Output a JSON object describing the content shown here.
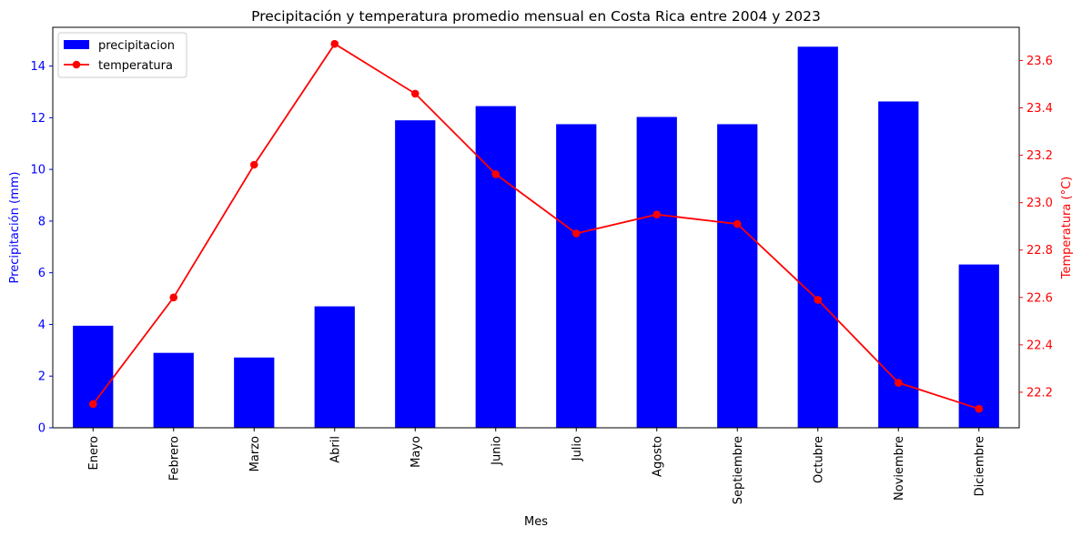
{
  "chart_data": {
    "type": "bar+line",
    "title": "Precipitación y temperatura promedio mensual en Costa Rica entre 2004 y 2023",
    "xlabel": "Mes",
    "categories": [
      "Enero",
      "Febrero",
      "Marzo",
      "Abril",
      "Mayo",
      "Junio",
      "Julio",
      "Agosto",
      "Septiembre",
      "Octubre",
      "Noviembre",
      "Diciembre"
    ],
    "series": [
      {
        "name": "precipitacion",
        "type": "bar",
        "axis": "left",
        "color": "#0000ff",
        "values": [
          3.95,
          2.9,
          2.72,
          4.7,
          11.9,
          12.45,
          11.75,
          12.03,
          11.75,
          14.75,
          12.63,
          6.32
        ]
      },
      {
        "name": "temperatura",
        "type": "line",
        "marker": "circle",
        "axis": "right",
        "color": "#ff0000",
        "values": [
          22.15,
          22.6,
          23.16,
          23.67,
          23.46,
          23.12,
          22.87,
          22.95,
          22.91,
          22.59,
          22.24,
          22.13
        ]
      }
    ],
    "y_left": {
      "label": "Precipitación (mm)",
      "color": "#0000ff",
      "lim": [
        0,
        15.5
      ],
      "ticks": [
        0,
        2,
        4,
        6,
        8,
        10,
        12,
        14
      ]
    },
    "y_right": {
      "label": "Temperatura (°C)",
      "color": "#ff0000",
      "lim": [
        22.05,
        23.74
      ],
      "ticks": [
        22.2,
        22.4,
        22.6,
        22.8,
        23.0,
        23.2,
        23.4,
        23.6
      ]
    },
    "legend": {
      "placement": "top-left",
      "entries": [
        "precipitacion",
        "temperatura"
      ]
    },
    "grid": false
  }
}
